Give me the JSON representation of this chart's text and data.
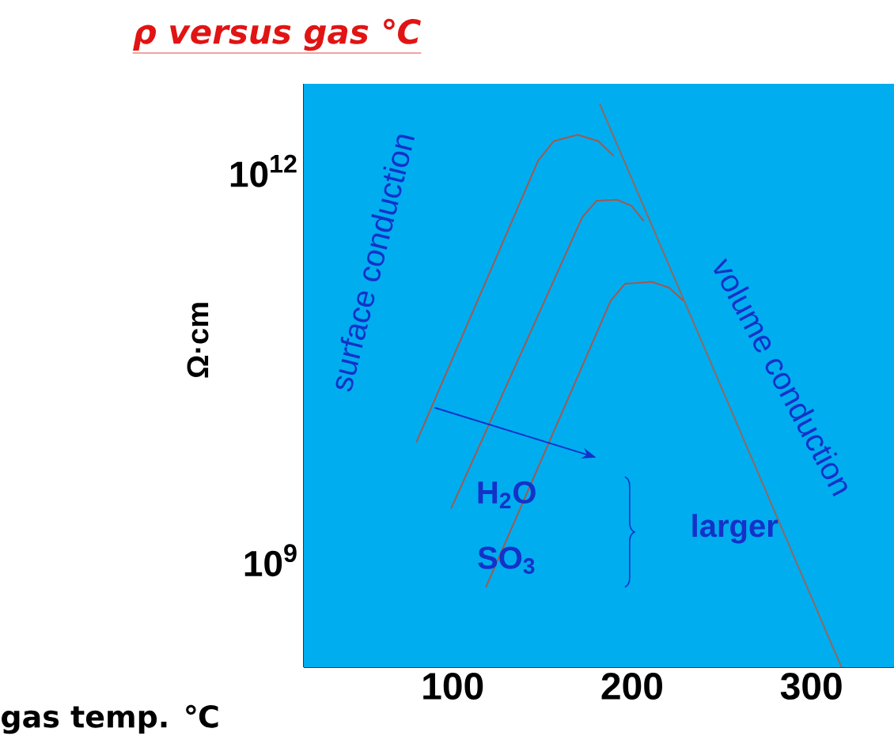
{
  "chart_data": {
    "type": "line",
    "title": "ρ versus gas ℃",
    "xlabel": "gas temp. ℃",
    "ylabel": "Ω·cm",
    "log": "y",
    "xlim": [
      17,
      346
    ],
    "ylim": [
      150000000.0,
      4700000000000.0
    ],
    "xticks": [
      100,
      200,
      300
    ],
    "yticks": [
      {
        "value": 1000000000.0,
        "label": "10$^{9}$"
      },
      {
        "value": 1000000000000.0,
        "label": "10$^{12}$"
      }
    ],
    "series": [
      {
        "color": "#a05a50",
        "x": [
          79.7,
          147.6,
          156.4,
          169.6,
          181.1,
          189.9
        ],
        "values": [
          8100000000.0,
          1200000000000.0,
          1700000000000.0,
          1900000000000.0,
          1700000000000.0,
          1300000000000.0
        ]
      },
      {
        "color": "#a05a50",
        "x": [
          99.1,
          172.2,
          180.2,
          191.6,
          199.6,
          206.6
        ],
        "values": [
          2500000000.0,
          440000000000.0,
          590000000000.0,
          600000000000.0,
          540000000000.0,
          410000000000.0
        ]
      },
      {
        "color": "#a05a50",
        "x": [
          118.5,
          188.1,
          196.0,
          211.0,
          220.7,
          228.6
        ],
        "values": [
          620000000.0,
          100000000000.0,
          135000000000.0,
          140000000000.0,
          126000000000.0,
          100000000000.0
        ]
      },
      {
        "color": "#8c6a62",
        "x": [
          181.9,
          316.7
        ],
        "values": [
          3300000000000.0,
          150000000.0
        ]
      }
    ],
    "annotations": [
      "surface conduction",
      "volume conduction",
      "H$_{2}$O",
      "SO$_{3}$",
      "larger"
    ]
  }
}
